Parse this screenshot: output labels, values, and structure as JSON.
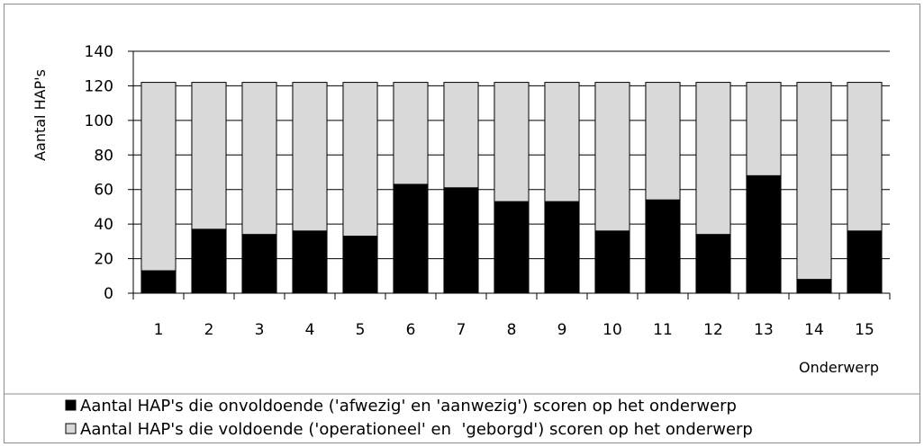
{
  "chart_data": {
    "type": "bar",
    "stacked": true,
    "categories": [
      "1",
      "2",
      "3",
      "4",
      "5",
      "6",
      "7",
      "8",
      "9",
      "10",
      "11",
      "12",
      "13",
      "14",
      "15"
    ],
    "series": [
      {
        "name": "Aantal HAP's die onvoldoende ('afwezig' en 'aanwezig') scoren op het onderwerp",
        "color": "#000000",
        "values": [
          13,
          37,
          34,
          36,
          33,
          63,
          61,
          53,
          53,
          36,
          54,
          34,
          68,
          8,
          36
        ]
      },
      {
        "name": "Aantal HAP's die voldoende ('operationeel' en  'geborgd') scoren op het onderwerp",
        "color": "#d9d9d9",
        "values": [
          109,
          85,
          88,
          86,
          89,
          59,
          61,
          69,
          69,
          86,
          68,
          88,
          54,
          114,
          86
        ]
      }
    ],
    "title": "",
    "xlabel": "Onderwerp",
    "ylabel": "Aantal HAP's",
    "ylim": [
      0,
      140
    ],
    "yticks": [
      0,
      20,
      40,
      60,
      80,
      100,
      120,
      140
    ],
    "grid": "horizontal",
    "legend_position": "bottom"
  }
}
